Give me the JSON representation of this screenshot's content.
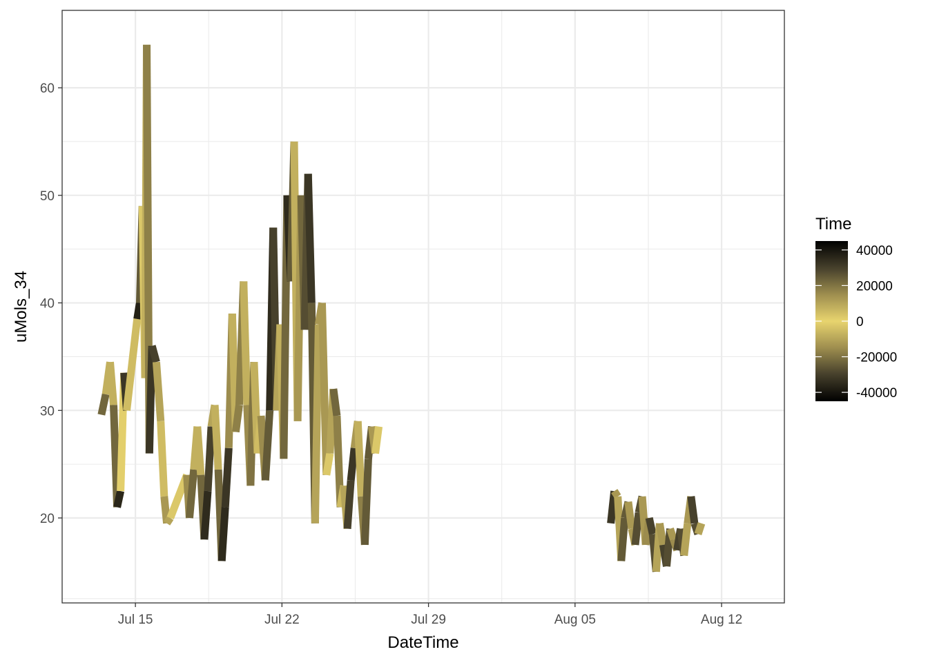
{
  "chart_data": {
    "type": "line",
    "xlabel": "DateTime",
    "ylabel": "uMols_34",
    "x_ticks": [
      "Jul 15",
      "Jul 22",
      "Jul 29",
      "Aug 05",
      "Aug 12"
    ],
    "x_tick_dates": [
      "2019-07-15",
      "2019-07-22",
      "2019-07-29",
      "2019-08-05",
      "2019-08-12"
    ],
    "y_ticks": [
      20,
      30,
      40,
      50,
      60
    ],
    "xlim": [
      "2019-07-11T12:00",
      "2019-08-15T00:00"
    ],
    "ylim": [
      12.1,
      67.2
    ],
    "grid": true,
    "legend": {
      "title": "Time",
      "position": "right",
      "labels": [
        "40000",
        "20000",
        "0",
        "-20000",
        "-40000"
      ],
      "values": [
        40000,
        20000,
        0,
        -20000,
        -40000
      ],
      "range": [
        -45000,
        45000
      ],
      "colors_low_to_high": [
        "#000000",
        "#47412c",
        "#9c8c4e",
        "#e8d46e",
        "#9c8c4e",
        "#47412c",
        "#000000"
      ]
    },
    "series": [
      {
        "segment": 1,
        "points": [
          [
            "2019-07-13T09:00",
            29.6,
            -30000
          ],
          [
            "2019-07-13T14:00",
            31.5,
            -15000
          ],
          [
            "2019-07-13T19:00",
            34.5,
            0
          ],
          [
            "2019-07-13T23:00",
            30.5,
            15000
          ],
          [
            "2019-07-14T03:00",
            21.0,
            30000
          ],
          [
            "2019-07-14T07:00",
            22.5,
            42000
          ],
          [
            "2019-07-14T11:00",
            33.5,
            -40000
          ],
          [
            "2019-07-14T14:00",
            30.0,
            -25000
          ],
          [
            "2019-07-15T02:00",
            38.5,
            35000
          ],
          [
            "2019-07-15T05:00",
            40.0,
            40000
          ],
          [
            "2019-07-15T08:00",
            49.0,
            10000
          ],
          [
            "2019-07-15T11:00",
            33.0,
            -5000
          ],
          [
            "2019-07-15T13:00",
            64.0,
            -10000
          ],
          [
            "2019-07-15T16:00",
            26.0,
            -25000
          ],
          [
            "2019-07-15T19:00",
            36.0,
            -40000
          ],
          [
            "2019-07-16T00:00",
            34.5,
            -20000
          ],
          [
            "2019-07-16T05:00",
            29.0,
            0
          ],
          [
            "2019-07-16T09:00",
            22.0,
            10000
          ],
          [
            "2019-07-16T12:00",
            19.5,
            15000
          ],
          [
            "2019-07-16T16:00",
            20.0,
            5000
          ],
          [
            "2019-07-17T11:00",
            24.0,
            0
          ],
          [
            "2019-07-17T14:00",
            20.0,
            -30000
          ],
          [
            "2019-07-17T19:00",
            24.5,
            -15000
          ],
          [
            "2019-07-17T23:00",
            28.5,
            0
          ],
          [
            "2019-07-18T03:00",
            24.0,
            15000
          ],
          [
            "2019-07-18T07:00",
            18.0,
            30000
          ],
          [
            "2019-07-18T11:00",
            22.5,
            40000
          ],
          [
            "2019-07-18T15:00",
            28.5,
            20000
          ],
          [
            "2019-07-18T19:00",
            30.5,
            0
          ],
          [
            "2019-07-18T23:00",
            24.5,
            15000
          ],
          [
            "2019-07-19T03:00",
            16.0,
            30000
          ],
          [
            "2019-07-19T07:00",
            21.0,
            40000
          ],
          [
            "2019-07-19T11:00",
            26.5,
            25000
          ],
          [
            "2019-07-19T15:00",
            39.0,
            5000
          ],
          [
            "2019-07-19T19:00",
            28.0,
            10000
          ],
          [
            "2019-07-19T23:00",
            30.5,
            25000
          ],
          [
            "2019-07-20T04:00",
            42.0,
            10000
          ],
          [
            "2019-07-20T08:00",
            30.5,
            5000
          ],
          [
            "2019-07-20T12:00",
            23.0,
            25000
          ],
          [
            "2019-07-20T16:00",
            34.5,
            15000
          ],
          [
            "2019-07-20T20:00",
            26.0,
            0
          ],
          [
            "2019-07-21T00:00",
            29.5,
            10000
          ],
          [
            "2019-07-21T05:00",
            23.5,
            20000
          ],
          [
            "2019-07-21T10:00",
            30.0,
            30000
          ],
          [
            "2019-07-21T14:00",
            47.0,
            40000
          ],
          [
            "2019-07-21T18:00",
            30.0,
            20000
          ],
          [
            "2019-07-21T22:00",
            38.0,
            0
          ],
          [
            "2019-07-22T02:00",
            25.5,
            15000
          ],
          [
            "2019-07-22T06:00",
            50.0,
            30000
          ],
          [
            "2019-07-22T10:00",
            42.0,
            40000
          ],
          [
            "2019-07-22T14:00",
            55.0,
            10000
          ],
          [
            "2019-07-22T18:00",
            29.0,
            5000
          ],
          [
            "2019-07-22T22:00",
            50.0,
            20000
          ],
          [
            "2019-07-23T02:00",
            37.5,
            25000
          ],
          [
            "2019-07-23T06:00",
            52.0,
            30000
          ],
          [
            "2019-07-23T10:00",
            40.0,
            35000
          ],
          [
            "2019-07-23T14:00",
            19.5,
            15000
          ],
          [
            "2019-07-23T18:00",
            38.0,
            5000
          ],
          [
            "2019-07-23T22:00",
            40.0,
            20000
          ],
          [
            "2019-07-24T03:00",
            24.0,
            5000
          ],
          [
            "2019-07-24T07:00",
            26.0,
            0
          ],
          [
            "2019-07-24T11:00",
            32.0,
            20000
          ],
          [
            "2019-07-24T15:00",
            29.5,
            25000
          ],
          [
            "2019-07-24T19:00",
            21.0,
            10000
          ],
          [
            "2019-07-24T23:00",
            23.0,
            0
          ],
          [
            "2019-07-25T03:00",
            19.0,
            20000
          ],
          [
            "2019-07-25T07:00",
            23.5,
            40000
          ],
          [
            "2019-07-25T11:00",
            26.5,
            25000
          ],
          [
            "2019-07-25T15:00",
            29.0,
            0
          ],
          [
            "2019-07-25T19:00",
            22.0,
            15000
          ],
          [
            "2019-07-25T23:00",
            17.5,
            20000
          ],
          [
            "2019-07-26T03:00",
            25.5,
            30000
          ],
          [
            "2019-07-26T07:00",
            28.5,
            20000
          ],
          [
            "2019-07-26T11:00",
            26.0,
            5000
          ],
          [
            "2019-07-26T15:00",
            28.5,
            0
          ]
        ]
      },
      {
        "segment": 2,
        "points": [
          [
            "2019-08-06T17:00",
            19.5,
            -40000
          ],
          [
            "2019-08-06T21:00",
            22.5,
            -25000
          ],
          [
            "2019-08-07T01:00",
            22.0,
            0
          ],
          [
            "2019-08-07T05:00",
            16.0,
            20000
          ],
          [
            "2019-08-07T09:00",
            20.0,
            30000
          ],
          [
            "2019-08-07T13:00",
            21.5,
            20000
          ],
          [
            "2019-08-07T17:00",
            19.0,
            5000
          ],
          [
            "2019-08-07T21:00",
            17.5,
            20000
          ],
          [
            "2019-08-08T01:00",
            20.5,
            35000
          ],
          [
            "2019-08-08T05:00",
            22.0,
            20000
          ],
          [
            "2019-08-08T09:00",
            17.5,
            5000
          ],
          [
            "2019-08-08T13:00",
            20.0,
            25000
          ],
          [
            "2019-08-08T17:00",
            18.5,
            35000
          ],
          [
            "2019-08-08T21:00",
            15.0,
            20000
          ],
          [
            "2019-08-09T01:00",
            19.5,
            0
          ],
          [
            "2019-08-09T05:00",
            17.5,
            25000
          ],
          [
            "2019-08-09T09:00",
            15.5,
            35000
          ],
          [
            "2019-08-09T13:00",
            19.0,
            20000
          ],
          [
            "2019-08-09T17:00",
            18.0,
            5000
          ],
          [
            "2019-08-09T21:00",
            17.0,
            25000
          ],
          [
            "2019-08-10T01:00",
            19.0,
            35000
          ],
          [
            "2019-08-10T05:00",
            16.5,
            20000
          ],
          [
            "2019-08-10T09:00",
            19.5,
            0
          ],
          [
            "2019-08-10T13:00",
            22.0,
            25000
          ],
          [
            "2019-08-10T17:00",
            19.5,
            35000
          ],
          [
            "2019-08-10T21:00",
            18.5,
            20000
          ],
          [
            "2019-08-11T01:00",
            19.5,
            0
          ]
        ]
      }
    ]
  }
}
